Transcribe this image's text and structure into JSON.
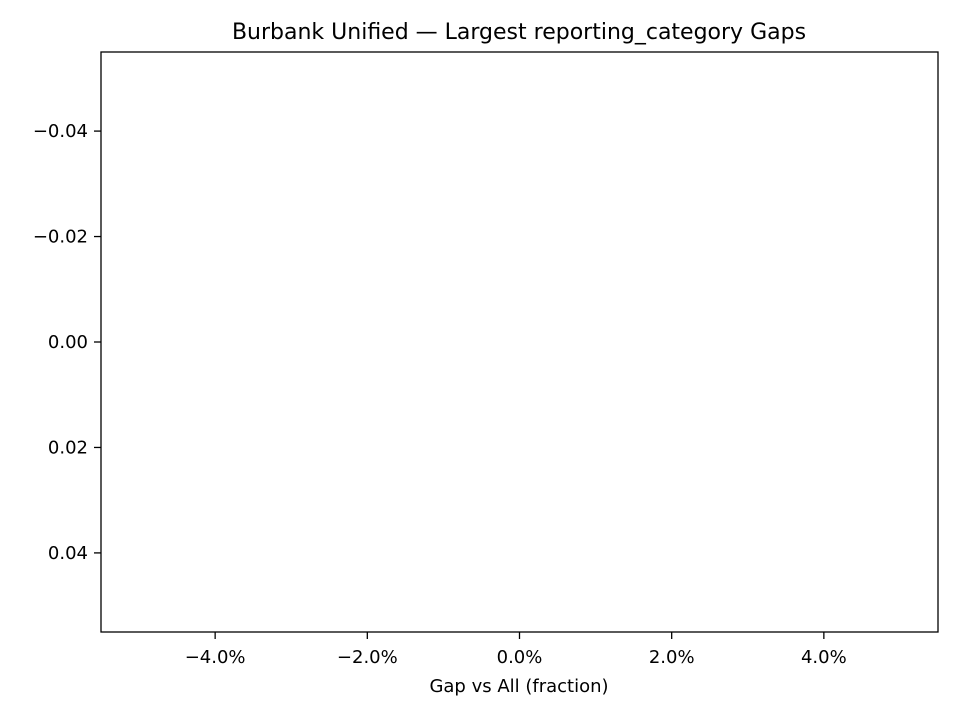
{
  "chart_data": {
    "type": "bar",
    "orientation": "horizontal",
    "title": "Burbank Unified — Largest reporting_category Gaps",
    "xlabel": "Gap vs All (fraction)",
    "ylabel": "",
    "categories": [],
    "values": [],
    "xlim": [
      -0.055,
      0.055
    ],
    "ylim": [
      0.055,
      -0.055
    ],
    "x_ticks": [
      -0.04,
      -0.02,
      0.0,
      0.02,
      0.04
    ],
    "x_tick_labels": [
      "−4.0%",
      "−2.0%",
      "0.0%",
      "2.0%",
      "4.0%"
    ],
    "y_ticks": [
      -0.04,
      -0.02,
      0.0,
      0.02,
      0.04
    ],
    "y_tick_labels": [
      "−0.04",
      "−0.02",
      "0.00",
      "0.02",
      "0.04"
    ],
    "grid": false,
    "legend": "none"
  }
}
